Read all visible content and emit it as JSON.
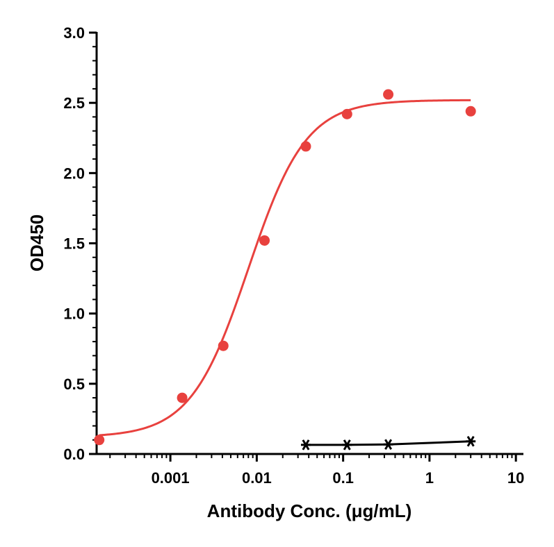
{
  "chart_data": {
    "type": "scatter",
    "title": "",
    "xlabel": "Antibody Conc. (μg/mL)",
    "ylabel": "OD450",
    "xscale": "log",
    "xlim": [
      0.00014,
      12
    ],
    "ylim": [
      0,
      3.0
    ],
    "xticks": [
      {
        "value": 0.001,
        "label": "0.001"
      },
      {
        "value": 0.01,
        "label": "0.01"
      },
      {
        "value": 0.1,
        "label": "0.1"
      },
      {
        "value": 1,
        "label": "1"
      },
      {
        "value": 10,
        "label": "10"
      }
    ],
    "yticks": [
      {
        "value": 0.0,
        "label": "0.0"
      },
      {
        "value": 0.5,
        "label": "0.5"
      },
      {
        "value": 1.0,
        "label": "1.0"
      },
      {
        "value": 1.5,
        "label": "1.5"
      },
      {
        "value": 2.0,
        "label": "2.0"
      },
      {
        "value": 2.5,
        "label": "2.5"
      },
      {
        "value": 3.0,
        "label": "3.0"
      }
    ],
    "grid": false,
    "series": [
      {
        "marker": "circle",
        "color": "#e8413e",
        "x": [
          0.00015,
          0.00137,
          0.0041,
          0.0123,
          0.037,
          0.111,
          0.333,
          3.0
        ],
        "y": [
          0.1,
          0.4,
          0.77,
          1.52,
          2.19,
          2.42,
          2.56,
          2.44
        ],
        "fit": {
          "bottom": 0.12,
          "top": 2.52,
          "ec50": 0.008,
          "hill": 1.3
        }
      },
      {
        "marker": "asterisk",
        "color": "#000000",
        "x": [
          0.037,
          0.111,
          0.333,
          3.0
        ],
        "y": [
          0.065,
          0.065,
          0.068,
          0.09
        ]
      }
    ]
  }
}
